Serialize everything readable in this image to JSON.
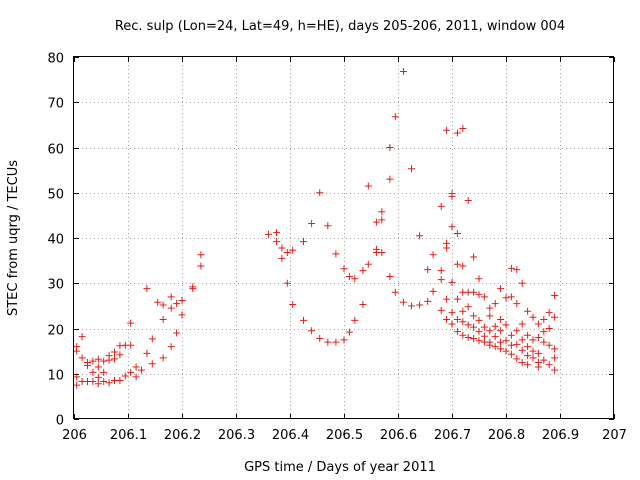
{
  "colors": {
    "series": "#e0201b",
    "grid": "#a0a0a0",
    "axis": "#000000"
  },
  "chart_data": {
    "type": "scatter",
    "title": "Rec. sulp (Lon=24, Lat=49, h=HE), days 205-206, 2011, window 004",
    "xlabel": "GPS time / Days of year 2011",
    "ylabel": "STEC from uqrg / TECUs",
    "xlim": [
      206,
      207
    ],
    "ylim": [
      0,
      80
    ],
    "xticks": [
      "206",
      "206.1",
      "206.2",
      "206.3",
      "206.4",
      "206.5",
      "206.6",
      "206.7",
      "206.8",
      "206.9",
      "207"
    ],
    "yticks": [
      "0",
      "10",
      "20",
      "30",
      "40",
      "50",
      "60",
      "70",
      "80"
    ],
    "grid": true,
    "marker": "+",
    "series": [
      {
        "name": "STEC",
        "points": [
          [
            206.005,
            16.0
          ],
          [
            206.005,
            15.0
          ],
          [
            206.005,
            9.3
          ],
          [
            206.005,
            7.5
          ],
          [
            206.015,
            18.2
          ],
          [
            206.015,
            13.5
          ],
          [
            206.015,
            8.3
          ],
          [
            206.025,
            12.5
          ],
          [
            206.025,
            11.8
          ],
          [
            206.025,
            8.3
          ],
          [
            206.035,
            12.8
          ],
          [
            206.035,
            10.3
          ],
          [
            206.035,
            8.3
          ],
          [
            206.045,
            13.2
          ],
          [
            206.045,
            11.5
          ],
          [
            206.045,
            9.2
          ],
          [
            206.045,
            7.8
          ],
          [
            206.055,
            12.8
          ],
          [
            206.055,
            10.3
          ],
          [
            206.055,
            8.3
          ],
          [
            206.065,
            14.0
          ],
          [
            206.065,
            13.0
          ],
          [
            206.065,
            8.0
          ],
          [
            206.075,
            14.8
          ],
          [
            206.075,
            13.3
          ],
          [
            206.075,
            8.5
          ],
          [
            206.085,
            16.2
          ],
          [
            206.085,
            14.2
          ],
          [
            206.085,
            8.5
          ],
          [
            206.095,
            16.3
          ],
          [
            206.095,
            9.5
          ],
          [
            206.105,
            21.2
          ],
          [
            206.105,
            16.3
          ],
          [
            206.105,
            10.3
          ],
          [
            206.115,
            11.5
          ],
          [
            206.115,
            9.3
          ],
          [
            206.125,
            10.8
          ],
          [
            206.135,
            28.8
          ],
          [
            206.135,
            14.5
          ],
          [
            206.145,
            17.7
          ],
          [
            206.145,
            12.2
          ],
          [
            206.155,
            25.8
          ],
          [
            206.165,
            25.2
          ],
          [
            206.165,
            22.0
          ],
          [
            206.165,
            13.5
          ],
          [
            206.18,
            27.0
          ],
          [
            206.18,
            24.5
          ],
          [
            206.18,
            16.0
          ],
          [
            206.19,
            25.5
          ],
          [
            206.19,
            19.0
          ],
          [
            206.2,
            26.2
          ],
          [
            206.2,
            23.0
          ],
          [
            206.22,
            29.2
          ],
          [
            206.22,
            28.8
          ],
          [
            206.235,
            36.3
          ],
          [
            206.235,
            33.8
          ],
          [
            206.36,
            40.8
          ],
          [
            206.375,
            41.2
          ],
          [
            206.375,
            39.2
          ],
          [
            206.385,
            37.8
          ],
          [
            206.385,
            35.5
          ],
          [
            206.395,
            36.8
          ],
          [
            206.395,
            30.0
          ],
          [
            206.405,
            37.3
          ],
          [
            206.405,
            25.3
          ],
          [
            206.425,
            39.2
          ],
          [
            206.425,
            21.8
          ],
          [
            206.44,
            43.2
          ],
          [
            206.44,
            19.5
          ],
          [
            206.455,
            50.0
          ],
          [
            206.455,
            17.8
          ],
          [
            206.47,
            42.7
          ],
          [
            206.47,
            17.0
          ],
          [
            206.485,
            36.5
          ],
          [
            206.485,
            17.0
          ],
          [
            206.5,
            33.2
          ],
          [
            206.5,
            17.5
          ],
          [
            206.51,
            31.5
          ],
          [
            206.51,
            19.2
          ],
          [
            206.52,
            31.0
          ],
          [
            206.52,
            21.8
          ],
          [
            206.535,
            32.8
          ],
          [
            206.535,
            25.3
          ],
          [
            206.545,
            51.5
          ],
          [
            206.545,
            34.2
          ],
          [
            206.56,
            43.5
          ],
          [
            206.56,
            37.5
          ],
          [
            206.56,
            36.8
          ],
          [
            206.57,
            45.8
          ],
          [
            206.57,
            44.0
          ],
          [
            206.57,
            36.8
          ],
          [
            206.585,
            60.0
          ],
          [
            206.585,
            53.0
          ],
          [
            206.585,
            31.5
          ],
          [
            206.595,
            66.8
          ],
          [
            206.595,
            28.0
          ],
          [
            206.61,
            76.8
          ],
          [
            206.61,
            25.8
          ],
          [
            206.625,
            55.3
          ],
          [
            206.625,
            25.0
          ],
          [
            206.64,
            40.5
          ],
          [
            206.64,
            25.2
          ],
          [
            206.655,
            33.0
          ],
          [
            206.655,
            26.0
          ],
          [
            206.665,
            36.3
          ],
          [
            206.665,
            28.2
          ],
          [
            206.68,
            47.0
          ],
          [
            206.68,
            32.8
          ],
          [
            206.68,
            30.8
          ],
          [
            206.68,
            24.0
          ],
          [
            206.69,
            63.8
          ],
          [
            206.69,
            38.8
          ],
          [
            206.69,
            37.8
          ],
          [
            206.69,
            26.5
          ],
          [
            206.69,
            22.0
          ],
          [
            206.7,
            49.8
          ],
          [
            206.7,
            49.2
          ],
          [
            206.7,
            42.5
          ],
          [
            206.7,
            30.2
          ],
          [
            206.7,
            23.5
          ],
          [
            206.7,
            21.0
          ],
          [
            206.71,
            63.2
          ],
          [
            206.71,
            41.0
          ],
          [
            206.71,
            34.2
          ],
          [
            206.71,
            26.5
          ],
          [
            206.71,
            22.0
          ],
          [
            206.71,
            19.3
          ],
          [
            206.72,
            64.2
          ],
          [
            206.72,
            33.8
          ],
          [
            206.72,
            28.0
          ],
          [
            206.72,
            23.8
          ],
          [
            206.72,
            21.5
          ],
          [
            206.72,
            18.5
          ],
          [
            206.73,
            48.3
          ],
          [
            206.73,
            28.0
          ],
          [
            206.73,
            24.8
          ],
          [
            206.73,
            20.8
          ],
          [
            206.73,
            18.0
          ],
          [
            206.74,
            35.8
          ],
          [
            206.74,
            28.0
          ],
          [
            206.74,
            22.8
          ],
          [
            206.74,
            20.3
          ],
          [
            206.74,
            17.8
          ],
          [
            206.75,
            31.0
          ],
          [
            206.75,
            27.5
          ],
          [
            206.75,
            21.8
          ],
          [
            206.75,
            19.3
          ],
          [
            206.75,
            17.3
          ],
          [
            206.76,
            27.0
          ],
          [
            206.76,
            20.3
          ],
          [
            206.76,
            18.3
          ],
          [
            206.76,
            17.0
          ],
          [
            206.77,
            24.5
          ],
          [
            206.77,
            22.8
          ],
          [
            206.77,
            19.5
          ],
          [
            206.77,
            17.0
          ],
          [
            206.77,
            16.3
          ],
          [
            206.78,
            25.5
          ],
          [
            206.78,
            20.5
          ],
          [
            206.78,
            18.2
          ],
          [
            206.78,
            16.0
          ],
          [
            206.79,
            28.8
          ],
          [
            206.79,
            22.0
          ],
          [
            206.79,
            19.5
          ],
          [
            206.79,
            17.0
          ],
          [
            206.79,
            15.5
          ],
          [
            206.8,
            26.8
          ],
          [
            206.8,
            20.8
          ],
          [
            206.8,
            17.3
          ],
          [
            206.8,
            15.0
          ],
          [
            206.81,
            33.3
          ],
          [
            206.81,
            27.0
          ],
          [
            206.81,
            18.5
          ],
          [
            206.81,
            16.3
          ],
          [
            206.81,
            14.3
          ],
          [
            206.82,
            33.0
          ],
          [
            206.82,
            25.5
          ],
          [
            206.82,
            19.5
          ],
          [
            206.82,
            16.5
          ],
          [
            206.82,
            13.3
          ],
          [
            206.83,
            30.0
          ],
          [
            206.83,
            21.0
          ],
          [
            206.83,
            17.5
          ],
          [
            206.83,
            15.2
          ],
          [
            206.83,
            12.5
          ],
          [
            206.84,
            23.8
          ],
          [
            206.84,
            18.5
          ],
          [
            206.84,
            16.0
          ],
          [
            206.84,
            14.0
          ],
          [
            206.84,
            12.0
          ],
          [
            206.85,
            22.5
          ],
          [
            206.85,
            17.5
          ],
          [
            206.85,
            15.0
          ],
          [
            206.85,
            13.5
          ],
          [
            206.86,
            21.0
          ],
          [
            206.86,
            18.0
          ],
          [
            206.86,
            14.5
          ],
          [
            206.86,
            12.5
          ],
          [
            206.86,
            11.5
          ],
          [
            206.87,
            22.0
          ],
          [
            206.87,
            19.3
          ],
          [
            206.87,
            17.0
          ],
          [
            206.87,
            13.0
          ],
          [
            206.88,
            23.5
          ],
          [
            206.88,
            20.0
          ],
          [
            206.88,
            16.3
          ],
          [
            206.88,
            12.0
          ],
          [
            206.89,
            27.3
          ],
          [
            206.89,
            22.5
          ],
          [
            206.89,
            15.5
          ],
          [
            206.89,
            13.5
          ],
          [
            206.89,
            10.8
          ]
        ]
      }
    ]
  }
}
